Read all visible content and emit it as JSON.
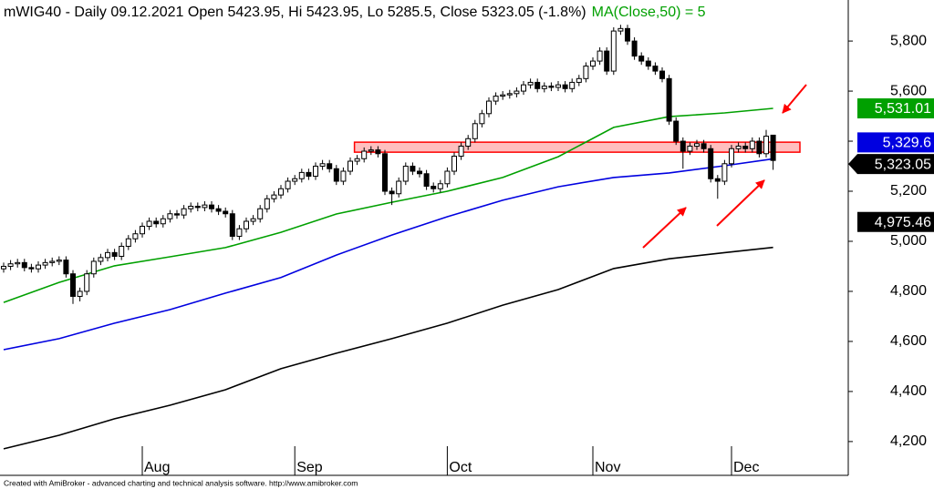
{
  "chart_data": {
    "type": "candlestick",
    "title": "mWIG40 - Daily 09.12.2021 Open 5423.95, Hi 5423.95, Lo 5285.5, Close 5323.05 (-1.8%)",
    "footer": "Created with AmiBroker - advanced charting and technical analysis software. http://www.amibroker.com",
    "categories": [
      null,
      null,
      null,
      null,
      null,
      null,
      null,
      null,
      null,
      null,
      null,
      null,
      null,
      null,
      null,
      null,
      null,
      null,
      null,
      null,
      "Aug",
      null,
      null,
      null,
      null,
      null,
      null,
      null,
      null,
      null,
      null,
      null,
      null,
      null,
      null,
      null,
      null,
      null,
      null,
      null,
      null,
      null,
      "Sep",
      null,
      null,
      null,
      null,
      null,
      null,
      null,
      null,
      null,
      null,
      null,
      null,
      null,
      null,
      null,
      null,
      null,
      null,
      null,
      null,
      null,
      "Oct",
      null,
      null,
      null,
      null,
      null,
      null,
      null,
      null,
      null,
      null,
      null,
      null,
      null,
      null,
      null,
      null,
      null,
      null,
      null,
      null,
      "Nov",
      null,
      null,
      null,
      null,
      null,
      null,
      null,
      null,
      null,
      null,
      null,
      null,
      null,
      null,
      null,
      null,
      null,
      null,
      null,
      "Dec",
      null,
      null,
      null,
      null,
      null,
      null
    ],
    "open": [
      4890,
      4900,
      4910,
      4915,
      4895,
      4890,
      4905,
      4915,
      4920,
      4925,
      4870,
      4780,
      4800,
      4870,
      4920,
      4935,
      4955,
      4940,
      4980,
      5010,
      5030,
      5060,
      5080,
      5070,
      5090,
      5110,
      5105,
      5130,
      5140,
      5135,
      5145,
      5130,
      5120,
      5110,
      5020,
      5050,
      5080,
      5090,
      5130,
      5170,
      5185,
      5210,
      5240,
      5250,
      5275,
      5260,
      5300,
      5310,
      5290,
      5240,
      5280,
      5320,
      5330,
      5360,
      5365,
      5350,
      5200,
      5190,
      5240,
      5300,
      5280,
      5270,
      5220,
      5210,
      5230,
      5280,
      5340,
      5380,
      5410,
      5470,
      5510,
      5560,
      5580,
      5585,
      5590,
      5600,
      5625,
      5635,
      5610,
      5620,
      5615,
      5625,
      5610,
      5635,
      5650,
      5700,
      5720,
      5760,
      5680,
      5840,
      5850,
      5800,
      5740,
      5720,
      5700,
      5680,
      5650,
      5480,
      5400,
      5360,
      5380,
      5390,
      5370,
      5250,
      5240,
      5310,
      5370,
      5380,
      5370,
      5400,
      5350,
      5423.95
    ],
    "high": [
      4915,
      4925,
      4930,
      4930,
      4910,
      4920,
      4930,
      4935,
      4940,
      4940,
      4885,
      4815,
      4885,
      4935,
      4950,
      4970,
      4970,
      4995,
      5025,
      5045,
      5075,
      5095,
      5095,
      5105,
      5125,
      5125,
      5145,
      5155,
      5155,
      5160,
      5160,
      5145,
      5135,
      5125,
      5065,
      5095,
      5105,
      5145,
      5185,
      5200,
      5225,
      5255,
      5265,
      5290,
      5290,
      5315,
      5325,
      5325,
      5305,
      5295,
      5335,
      5345,
      5375,
      5380,
      5380,
      5365,
      5215,
      5255,
      5315,
      5315,
      5295,
      5285,
      5235,
      5245,
      5295,
      5355,
      5395,
      5425,
      5485,
      5525,
      5575,
      5595,
      5600,
      5605,
      5615,
      5640,
      5650,
      5650,
      5635,
      5635,
      5640,
      5640,
      5650,
      5665,
      5715,
      5735,
      5775,
      5775,
      5855,
      5865,
      5865,
      5815,
      5755,
      5735,
      5715,
      5695,
      5665,
      5495,
      5415,
      5395,
      5405,
      5405,
      5385,
      5265,
      5325,
      5385,
      5395,
      5395,
      5415,
      5415,
      5445,
      5423.95
    ],
    "low": [
      4875,
      4885,
      4895,
      4880,
      4875,
      4875,
      4890,
      4900,
      4905,
      4855,
      4750,
      4760,
      4785,
      4855,
      4905,
      4920,
      4925,
      4925,
      4965,
      4995,
      5015,
      5045,
      5055,
      5055,
      5075,
      5090,
      5090,
      5115,
      5120,
      5120,
      5115,
      5105,
      5095,
      5005,
      5005,
      5035,
      5065,
      5075,
      5115,
      5155,
      5170,
      5195,
      5225,
      5235,
      5245,
      5245,
      5285,
      5275,
      5225,
      5225,
      5265,
      5305,
      5315,
      5345,
      5335,
      5185,
      5145,
      5175,
      5225,
      5265,
      5255,
      5205,
      5195,
      5195,
      5215,
      5265,
      5325,
      5365,
      5395,
      5455,
      5495,
      5545,
      5565,
      5570,
      5575,
      5585,
      5610,
      5595,
      5595,
      5600,
      5600,
      5595,
      5595,
      5620,
      5635,
      5685,
      5705,
      5665,
      5665,
      5825,
      5785,
      5725,
      5705,
      5685,
      5665,
      5635,
      5465,
      5385,
      5290,
      5345,
      5365,
      5355,
      5235,
      5170,
      5225,
      5295,
      5355,
      5355,
      5355,
      5335,
      5335,
      5285.5
    ],
    "close": [
      4900,
      4910,
      4915,
      4895,
      4890,
      4905,
      4915,
      4920,
      4925,
      4870,
      4780,
      4800,
      4870,
      4920,
      4935,
      4955,
      4940,
      4980,
      5010,
      5030,
      5060,
      5080,
      5070,
      5090,
      5110,
      5105,
      5130,
      5140,
      5135,
      5145,
      5130,
      5120,
      5110,
      5020,
      5050,
      5080,
      5090,
      5130,
      5170,
      5185,
      5210,
      5240,
      5250,
      5275,
      5260,
      5300,
      5310,
      5290,
      5240,
      5280,
      5320,
      5330,
      5360,
      5365,
      5350,
      5200,
      5190,
      5240,
      5300,
      5280,
      5270,
      5220,
      5210,
      5230,
      5280,
      5340,
      5380,
      5410,
      5470,
      5510,
      5560,
      5580,
      5585,
      5590,
      5600,
      5625,
      5635,
      5610,
      5620,
      5615,
      5625,
      5610,
      5635,
      5650,
      5700,
      5720,
      5760,
      5680,
      5840,
      5850,
      5800,
      5740,
      5720,
      5700,
      5680,
      5650,
      5480,
      5400,
      5360,
      5380,
      5390,
      5370,
      5250,
      5240,
      5310,
      5370,
      5380,
      5370,
      5400,
      5350,
      5420,
      5323.05
    ],
    "close_label": "5,323.05",
    "series": [
      {
        "name": "MA(Close,50) = 5",
        "color": "#00a000",
        "x": [
          0,
          8,
          16,
          24,
          32,
          40,
          48,
          56,
          64,
          72,
          80,
          88,
          96,
          104,
          111
        ],
        "values": [
          4756,
          4836,
          4902,
          4938,
          4975,
          5036,
          5109,
          5156,
          5200,
          5255,
          5338,
          5455,
          5498,
          5513,
          5531.01
        ],
        "last_label": "5,531.01"
      },
      {
        "color": "#0000e0",
        "x": [
          0,
          8,
          16,
          24,
          32,
          40,
          48,
          56,
          64,
          72,
          80,
          88,
          96,
          104,
          111
        ],
        "values": [
          4567,
          4611,
          4673,
          4727,
          4793,
          4855,
          4945,
          5025,
          5098,
          5164,
          5218,
          5255,
          5273,
          5302,
          5329.6
        ],
        "last_label": "5,329.6"
      },
      {
        "color": "#000000",
        "x": [
          0,
          8,
          16,
          24,
          32,
          40,
          48,
          56,
          64,
          72,
          80,
          88,
          96,
          104,
          111
        ],
        "values": [
          4171,
          4225,
          4291,
          4345,
          4407,
          4491,
          4553,
          4611,
          4673,
          4745,
          4807,
          4891,
          4930,
          4955,
          4975.46
        ],
        "last_label": "4,975.46"
      }
    ],
    "band": {
      "from": 5356,
      "to": 5396,
      "color": "#ff0000"
    },
    "ylim": [
      4065,
      5964
    ],
    "yticks": [
      {
        "value": 4200,
        "label": "4,200"
      },
      {
        "value": 4400,
        "label": "4,400"
      },
      {
        "value": 4600,
        "label": "4,600"
      },
      {
        "value": 4800,
        "label": "4,800"
      },
      {
        "value": 5000,
        "label": "5,000"
      },
      {
        "value": 5200,
        "label": "5,200"
      },
      {
        "value": 5400,
        "label": "5,400"
      },
      {
        "value": 5600,
        "label": "5,600"
      },
      {
        "value": 5800,
        "label": "5,800"
      }
    ],
    "grid": false
  }
}
